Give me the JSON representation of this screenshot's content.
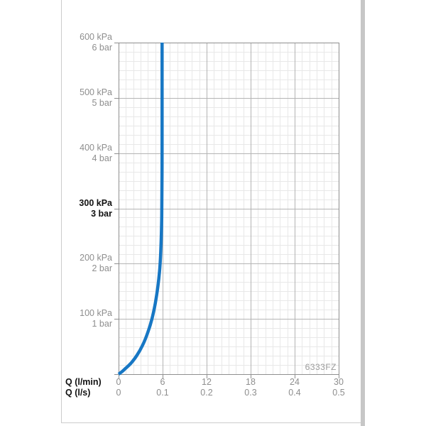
{
  "page": {
    "background": "#ffffff",
    "border_color": "#cccccc",
    "right_edge_bar_color": "#c7c7c7"
  },
  "chart_data": {
    "type": "line",
    "title": "",
    "x_unit_primary": "l/min",
    "x_unit_secondary": "l/s",
    "y_unit": "kPa",
    "x_axis": {
      "range_lmin": [
        0,
        30
      ],
      "rows": [
        {
          "label": "Q (l/min)",
          "ticks": [
            "0",
            "6",
            "12",
            "18",
            "24",
            "30"
          ],
          "values": [
            0,
            6,
            12,
            18,
            24,
            30
          ]
        },
        {
          "label": "Q (l/s)",
          "ticks": [
            "0",
            "0.1",
            "0.2",
            "0.3",
            "0.4",
            "0.5"
          ],
          "values": [
            0,
            0.1,
            0.2,
            0.3,
            0.4,
            0.5
          ]
        }
      ]
    },
    "y_axis": {
      "range_kpa": [
        0,
        600
      ],
      "ticks": [
        {
          "kpa": "600 kPa",
          "bar": "6 bar",
          "value": 600,
          "bold": false
        },
        {
          "kpa": "500 kPa",
          "bar": "5 bar",
          "value": 500,
          "bold": false
        },
        {
          "kpa": "400 kPa",
          "bar": "4 bar",
          "value": 400,
          "bold": false
        },
        {
          "kpa": "300 kPa",
          "bar": "3 bar",
          "value": 300,
          "bold": true
        },
        {
          "kpa": "200 kPa",
          "bar": "2 bar",
          "value": 200,
          "bold": false
        },
        {
          "kpa": "100 kPa",
          "bar": "1 bar",
          "value": 100,
          "bold": false
        }
      ]
    },
    "grid": {
      "minor_per_major": 6,
      "major_color": "#b4b4b4",
      "minor_color": "#e8e8e8",
      "axis_color": "#8f8f8f",
      "grid_on": true
    },
    "series": [
      {
        "name": "flow-pressure-curve",
        "color": "#1777C4",
        "stroke_width": 4.5,
        "points_q_lmin_vs_kpa": [
          [
            0,
            0
          ],
          [
            0.5,
            5
          ],
          [
            1.0,
            11
          ],
          [
            1.7,
            20
          ],
          [
            2.5,
            34
          ],
          [
            3.3,
            53
          ],
          [
            4.0,
            76
          ],
          [
            4.55,
            100
          ],
          [
            5.0,
            128
          ],
          [
            5.35,
            158
          ],
          [
            5.62,
            192
          ],
          [
            5.78,
            232
          ],
          [
            5.88,
            285
          ],
          [
            5.92,
            360
          ],
          [
            5.93,
            450
          ],
          [
            5.93,
            600
          ]
        ]
      }
    ],
    "annotation": "6333FZ",
    "legend": {
      "visible": false
    }
  }
}
